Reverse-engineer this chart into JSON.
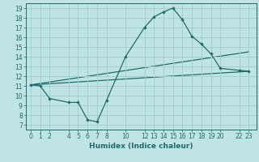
{
  "xlabel": "Humidex (Indice chaleur)",
  "bg_color": "#c0e4e4",
  "grid_color": "#9fcfcf",
  "line_color": "#1e6b6b",
  "tick_color": "#1e6b6b",
  "spine_color": "#1e6b6b",
  "xlim": [
    -0.5,
    23.8
  ],
  "ylim": [
    6.5,
    19.5
  ],
  "xticks": [
    0,
    1,
    2,
    4,
    5,
    6,
    7,
    8,
    10,
    12,
    13,
    14,
    15,
    16,
    17,
    18,
    19,
    20,
    22,
    23
  ],
  "yticks": [
    7,
    8,
    9,
    10,
    11,
    12,
    13,
    14,
    15,
    16,
    17,
    18,
    19
  ],
  "line1_x": [
    0,
    1,
    2,
    4,
    5,
    6,
    7,
    8,
    10,
    12,
    13,
    14,
    15,
    16,
    17,
    18,
    19,
    20,
    22,
    23
  ],
  "line1_y": [
    11.1,
    11.0,
    9.7,
    9.3,
    9.3,
    7.5,
    7.3,
    9.5,
    14.0,
    17.0,
    18.1,
    18.6,
    19.0,
    17.8,
    16.1,
    15.3,
    14.3,
    12.8,
    12.6,
    12.5
  ],
  "line2_x": [
    0,
    23
  ],
  "line2_y": [
    11.1,
    12.5
  ],
  "line3_x": [
    0,
    23
  ],
  "line3_y": [
    11.1,
    14.5
  ]
}
